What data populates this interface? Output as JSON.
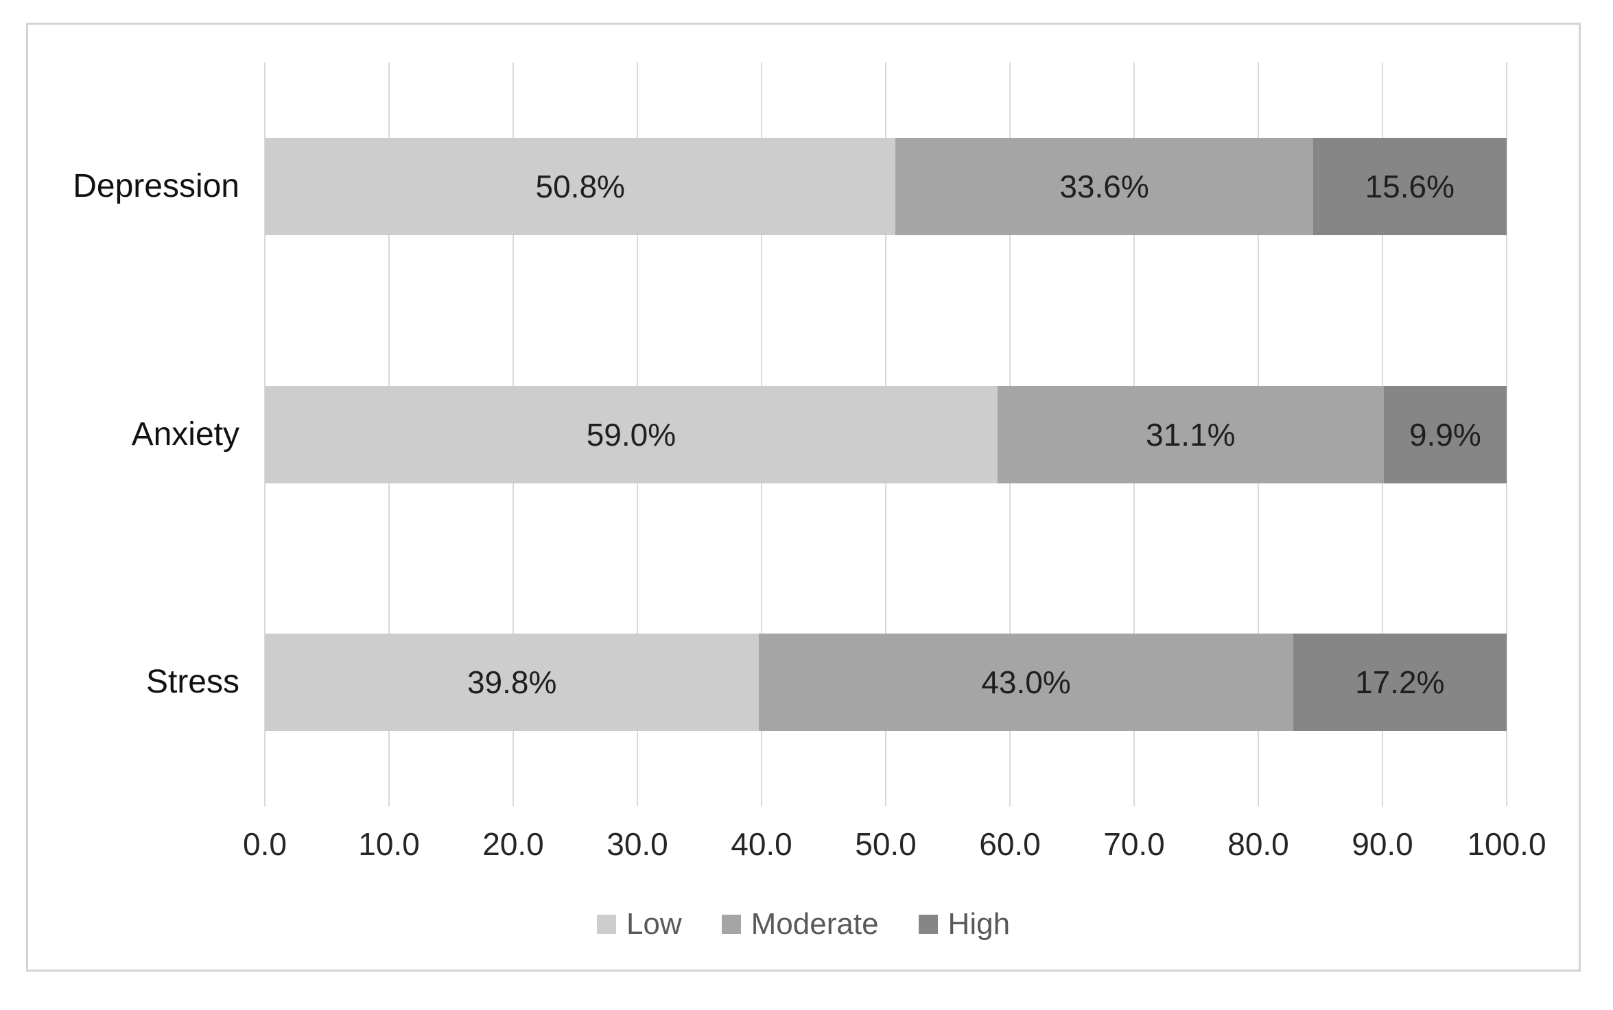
{
  "chart_data": {
    "type": "bar",
    "stacked": true,
    "orientation": "horizontal",
    "title": "",
    "xlabel": "",
    "ylabel": "",
    "categories": [
      "Depression",
      "Anxiety",
      "Stress"
    ],
    "series": [
      {
        "name": "Low",
        "color": "#cdcdcd",
        "values": [
          50.8,
          59.0,
          39.8
        ],
        "labels": [
          "50.8%",
          "59.0%",
          "39.8%"
        ]
      },
      {
        "name": "Moderate",
        "color": "#a5a5a5",
        "values": [
          33.6,
          31.1,
          43.0
        ],
        "labels": [
          "33.6%",
          "31.1%",
          "43.0%"
        ]
      },
      {
        "name": "High",
        "color": "#868686",
        "values": [
          15.6,
          9.9,
          17.2
        ],
        "labels": [
          "15.6%",
          "9.9%",
          "17.2%"
        ]
      }
    ],
    "x_axis": {
      "min": 0,
      "max": 100,
      "tick_interval": 10,
      "tick_labels": [
        "0.0",
        "10.0",
        "20.0",
        "30.0",
        "40.0",
        "50.0",
        "60.0",
        "70.0",
        "80.0",
        "90.0",
        "100.0"
      ]
    },
    "legend": {
      "position": "bottom",
      "entries": [
        "Low",
        "Moderate",
        "High"
      ]
    },
    "grid": "vertical",
    "colors": {
      "gridline": "#d9d9d9",
      "figure_border": "#d3d3d3",
      "background": "#ffffff",
      "value_label_text": "#1f1f1f",
      "tick_text": "#262626",
      "category_text": "#111111",
      "legend_text": "#595959"
    }
  }
}
